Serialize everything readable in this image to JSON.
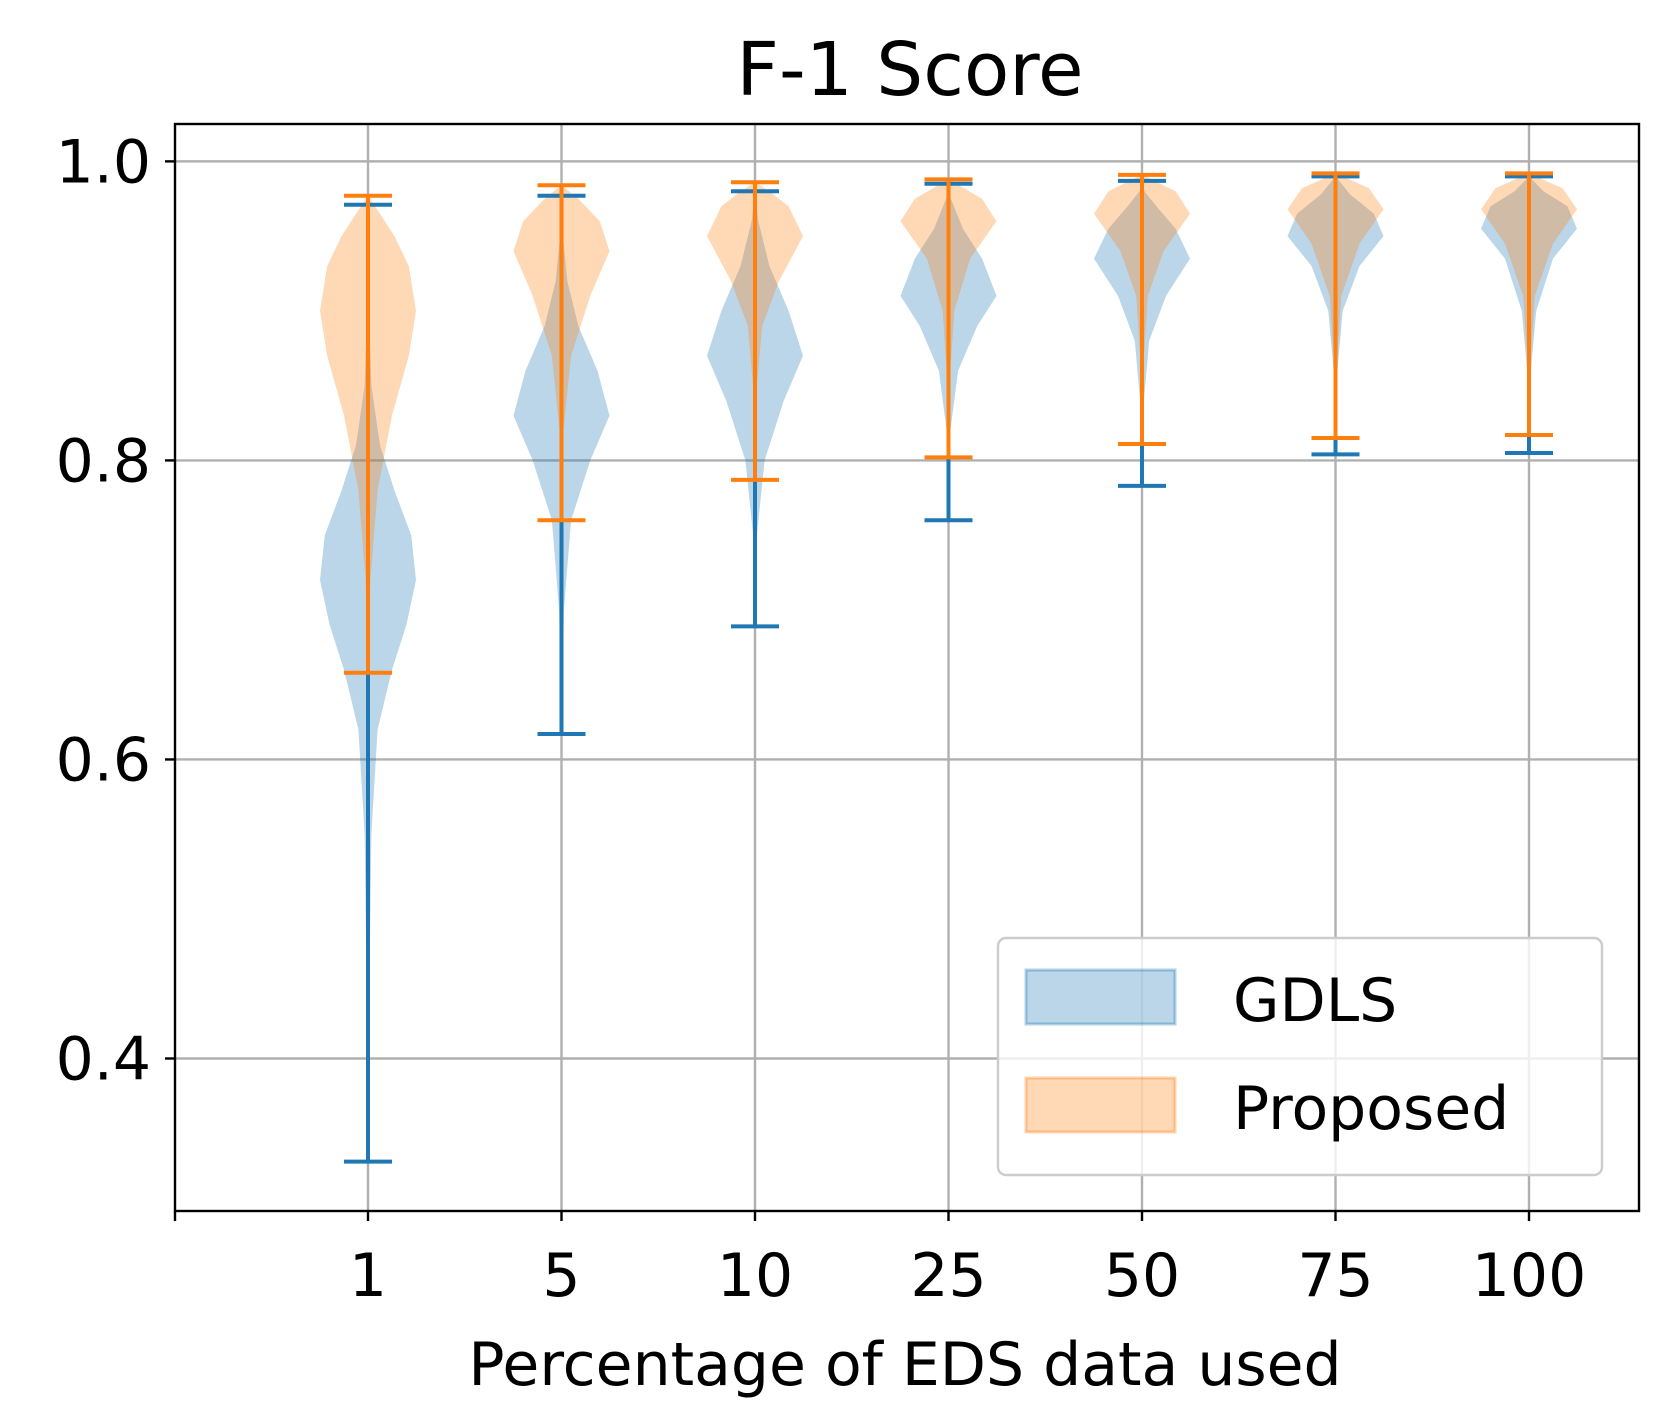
{
  "chart_data": {
    "type": "violin",
    "title": "F-1 Score",
    "xlabel": "Percentage of EDS data used",
    "ylabel": "",
    "categories": [
      "1",
      "5",
      "10",
      "25",
      "50",
      "75",
      "100"
    ],
    "yticks": [
      {
        "value": 0.4,
        "label": "0.4"
      },
      {
        "value": 0.6,
        "label": "0.6"
      },
      {
        "value": 0.8,
        "label": "0.8"
      },
      {
        "value": 1.0,
        "label": "1.0"
      }
    ],
    "ylim": [
      0.298,
      1.025
    ],
    "grid": true,
    "legend_position": "lower-right",
    "series": [
      {
        "name": "GDLS",
        "color": "#1f77b4",
        "violins": [
          {
            "min": 0.331,
            "max": 0.971,
            "shape": [
              [
                0.331,
                0.0
              ],
              [
                0.45,
                0.03
              ],
              [
                0.55,
                0.07
              ],
              [
                0.62,
                0.2
              ],
              [
                0.66,
                0.5
              ],
              [
                0.69,
                0.8
              ],
              [
                0.72,
                1.0
              ],
              [
                0.75,
                0.9
              ],
              [
                0.78,
                0.55
              ],
              [
                0.81,
                0.25
              ],
              [
                0.85,
                0.07
              ],
              [
                0.9,
                0.02
              ],
              [
                0.971,
                0.0
              ]
            ]
          },
          {
            "min": 0.617,
            "max": 0.977,
            "shape": [
              [
                0.617,
                0.0
              ],
              [
                0.7,
                0.05
              ],
              [
                0.76,
                0.2
              ],
              [
                0.8,
                0.6
              ],
              [
                0.83,
                1.0
              ],
              [
                0.86,
                0.75
              ],
              [
                0.89,
                0.35
              ],
              [
                0.92,
                0.12
              ],
              [
                0.95,
                0.03
              ],
              [
                0.977,
                0.0
              ]
            ]
          },
          {
            "min": 0.689,
            "max": 0.98,
            "shape": [
              [
                0.689,
                0.0
              ],
              [
                0.75,
                0.04
              ],
              [
                0.8,
                0.2
              ],
              [
                0.84,
                0.6
              ],
              [
                0.87,
                1.0
              ],
              [
                0.9,
                0.7
              ],
              [
                0.93,
                0.3
              ],
              [
                0.96,
                0.07
              ],
              [
                0.98,
                0.0
              ]
            ]
          },
          {
            "min": 0.76,
            "max": 0.985,
            "shape": [
              [
                0.76,
                0.0
              ],
              [
                0.82,
                0.04
              ],
              [
                0.86,
                0.2
              ],
              [
                0.89,
                0.6
              ],
              [
                0.91,
                1.0
              ],
              [
                0.935,
                0.7
              ],
              [
                0.955,
                0.3
              ],
              [
                0.975,
                0.05
              ],
              [
                0.985,
                0.0
              ]
            ]
          },
          {
            "min": 0.783,
            "max": 0.987,
            "shape": [
              [
                0.783,
                0.0
              ],
              [
                0.84,
                0.04
              ],
              [
                0.88,
                0.15
              ],
              [
                0.91,
                0.5
              ],
              [
                0.935,
                1.0
              ],
              [
                0.955,
                0.7
              ],
              [
                0.97,
                0.3
              ],
              [
                0.98,
                0.05
              ],
              [
                0.987,
                0.0
              ]
            ]
          },
          {
            "min": 0.804,
            "max": 0.99,
            "shape": [
              [
                0.804,
                0.0
              ],
              [
                0.86,
                0.04
              ],
              [
                0.9,
                0.15
              ],
              [
                0.93,
                0.5
              ],
              [
                0.95,
                1.0
              ],
              [
                0.965,
                0.8
              ],
              [
                0.978,
                0.3
              ],
              [
                0.99,
                0.0
              ]
            ]
          },
          {
            "min": 0.805,
            "max": 0.99,
            "shape": [
              [
                0.805,
                0.0
              ],
              [
                0.86,
                0.04
              ],
              [
                0.9,
                0.15
              ],
              [
                0.935,
                0.5
              ],
              [
                0.955,
                1.0
              ],
              [
                0.97,
                0.8
              ],
              [
                0.98,
                0.3
              ],
              [
                0.99,
                0.0
              ]
            ]
          }
        ]
      },
      {
        "name": "Proposed",
        "color": "#ff7f0e",
        "violins": [
          {
            "min": 0.658,
            "max": 0.977,
            "shape": [
              [
                0.658,
                0.0
              ],
              [
                0.72,
                0.05
              ],
              [
                0.78,
                0.2
              ],
              [
                0.83,
                0.5
              ],
              [
                0.87,
                0.85
              ],
              [
                0.9,
                1.0
              ],
              [
                0.93,
                0.85
              ],
              [
                0.95,
                0.55
              ],
              [
                0.965,
                0.25
              ],
              [
                0.977,
                0.0
              ]
            ]
          },
          {
            "min": 0.76,
            "max": 0.984,
            "shape": [
              [
                0.76,
                0.0
              ],
              [
                0.82,
                0.04
              ],
              [
                0.87,
                0.2
              ],
              [
                0.91,
                0.6
              ],
              [
                0.94,
                1.0
              ],
              [
                0.96,
                0.8
              ],
              [
                0.975,
                0.35
              ],
              [
                0.984,
                0.0
              ]
            ]
          },
          {
            "min": 0.787,
            "max": 0.986,
            "shape": [
              [
                0.787,
                0.0
              ],
              [
                0.85,
                0.04
              ],
              [
                0.89,
                0.15
              ],
              [
                0.92,
                0.5
              ],
              [
                0.95,
                1.0
              ],
              [
                0.97,
                0.7
              ],
              [
                0.98,
                0.3
              ],
              [
                0.986,
                0.0
              ]
            ]
          },
          {
            "min": 0.802,
            "max": 0.988,
            "shape": [
              [
                0.802,
                0.0
              ],
              [
                0.86,
                0.04
              ],
              [
                0.9,
                0.12
              ],
              [
                0.935,
                0.45
              ],
              [
                0.96,
                1.0
              ],
              [
                0.975,
                0.7
              ],
              [
                0.988,
                0.0
              ]
            ]
          },
          {
            "min": 0.811,
            "max": 0.991,
            "shape": [
              [
                0.811,
                0.0
              ],
              [
                0.87,
                0.04
              ],
              [
                0.91,
                0.12
              ],
              [
                0.94,
                0.45
              ],
              [
                0.965,
                1.0
              ],
              [
                0.98,
                0.7
              ],
              [
                0.991,
                0.0
              ]
            ]
          },
          {
            "min": 0.815,
            "max": 0.992,
            "shape": [
              [
                0.815,
                0.0
              ],
              [
                0.87,
                0.04
              ],
              [
                0.91,
                0.12
              ],
              [
                0.945,
                0.5
              ],
              [
                0.968,
                1.0
              ],
              [
                0.982,
                0.7
              ],
              [
                0.992,
                0.0
              ]
            ]
          },
          {
            "min": 0.817,
            "max": 0.992,
            "shape": [
              [
                0.817,
                0.0
              ],
              [
                0.87,
                0.04
              ],
              [
                0.91,
                0.12
              ],
              [
                0.945,
                0.5
              ],
              [
                0.968,
                1.0
              ],
              [
                0.982,
                0.7
              ],
              [
                0.992,
                0.0
              ]
            ]
          }
        ]
      }
    ]
  }
}
